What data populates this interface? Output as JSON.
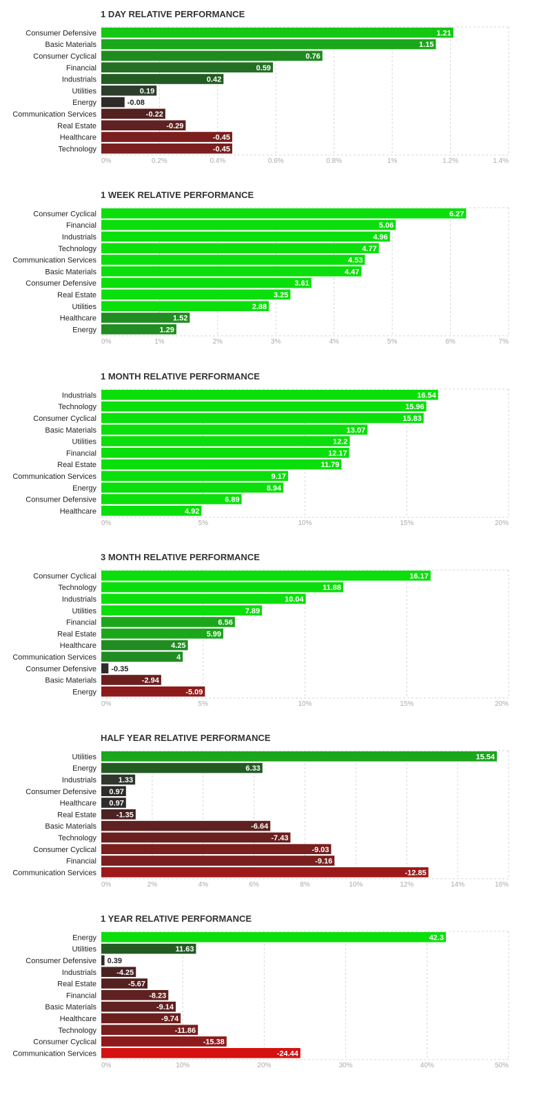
{
  "chart_data": [
    {
      "type": "bar",
      "orientation": "horizontal",
      "title": "1 DAY RELATIVE PERFORMANCE",
      "categories": [
        "Consumer Defensive",
        "Basic Materials",
        "Consumer Cyclical",
        "Financial",
        "Industrials",
        "Utilities",
        "Energy",
        "Communication Services",
        "Real Estate",
        "Healthcare",
        "Technology"
      ],
      "values": [
        1.21,
        1.15,
        0.76,
        0.59,
        0.42,
        0.19,
        -0.08,
        -0.22,
        -0.29,
        -0.45,
        -0.45
      ],
      "value_labels": [
        "1.21",
        "1.15",
        "0.76",
        "0.59",
        "0.42",
        "0.19",
        "-0.08",
        "-0.22",
        "-0.29",
        "-0.45",
        "-0.45"
      ],
      "xlim": [
        0,
        1.4
      ],
      "xticks": [
        0,
        0.2,
        0.4,
        0.6,
        0.8,
        1,
        1.2,
        1.4
      ],
      "xtick_labels": [
        "0%",
        "0.2%",
        "0.4%",
        "0.6%",
        "0.8%",
        "1%",
        "1.2%",
        "1.4%"
      ],
      "bar_colors": [
        "#13c713",
        "#1ba71b",
        "#1f8b1f",
        "#236f23",
        "#235c23",
        "#2d3e2d",
        "#302b2b",
        "#542020",
        "#5f2121",
        "#7a1e1e",
        "#7a1e1e"
      ],
      "grid": true
    },
    {
      "type": "bar",
      "orientation": "horizontal",
      "title": "1 WEEK RELATIVE PERFORMANCE",
      "categories": [
        "Consumer Cyclical",
        "Financial",
        "Industrials",
        "Technology",
        "Communication Services",
        "Basic Materials",
        "Consumer Defensive",
        "Real Estate",
        "Utilities",
        "Healthcare",
        "Energy"
      ],
      "values": [
        6.27,
        5.06,
        4.96,
        4.77,
        4.53,
        4.47,
        3.61,
        3.25,
        2.88,
        1.52,
        1.29
      ],
      "value_labels": [
        "6.27",
        "5.06",
        "4.96",
        "4.77",
        "4.53",
        "4.47",
        "3.61",
        "3.25",
        "2.88",
        "1.52",
        "1.29"
      ],
      "xlim": [
        0,
        7
      ],
      "xticks": [
        0,
        1,
        2,
        3,
        4,
        5,
        6,
        7
      ],
      "xtick_labels": [
        "0%",
        "1%",
        "2%",
        "3%",
        "4%",
        "5%",
        "6%",
        "7%"
      ],
      "bar_colors": [
        "#0bdf0b",
        "#0bdf0b",
        "#0bdf0b",
        "#0bdf0b",
        "#0bdf0b",
        "#0bdf0b",
        "#0bdf0b",
        "#0bdf0b",
        "#0bdf0b",
        "#218c21",
        "#218c21"
      ],
      "grid": true
    },
    {
      "type": "bar",
      "orientation": "horizontal",
      "title": "1 MONTH RELATIVE PERFORMANCE",
      "categories": [
        "Industrials",
        "Technology",
        "Consumer Cyclical",
        "Basic Materials",
        "Utilities",
        "Financial",
        "Real Estate",
        "Communication Services",
        "Energy",
        "Consumer Defensive",
        "Healthcare"
      ],
      "values": [
        16.54,
        15.96,
        15.83,
        13.07,
        12.2,
        12.17,
        11.79,
        9.17,
        8.94,
        6.89,
        4.92
      ],
      "value_labels": [
        "16.54",
        "15.96",
        "15.83",
        "13.07",
        "12.2",
        "12.17",
        "11.79",
        "9.17",
        "8.94",
        "6.89",
        "4.92"
      ],
      "xlim": [
        0,
        20
      ],
      "xticks": [
        0,
        5,
        10,
        15,
        20
      ],
      "xtick_labels": [
        "0%",
        "5%",
        "10%",
        "15%",
        "20%"
      ],
      "bar_colors": [
        "#0bdf0b",
        "#0bdf0b",
        "#0bdf0b",
        "#0bdf0b",
        "#0bdf0b",
        "#0bdf0b",
        "#0bdf0b",
        "#0bdf0b",
        "#0bdf0b",
        "#0bdf0b",
        "#0bdf0b"
      ],
      "grid": true
    },
    {
      "type": "bar",
      "orientation": "horizontal",
      "title": "3 MONTH RELATIVE PERFORMANCE",
      "categories": [
        "Consumer Cyclical",
        "Technology",
        "Industrials",
        "Utilities",
        "Financial",
        "Real Estate",
        "Healthcare",
        "Communication Services",
        "Consumer Defensive",
        "Basic Materials",
        "Energy"
      ],
      "values": [
        16.17,
        11.88,
        10.04,
        7.89,
        6.56,
        5.99,
        4.25,
        4,
        -0.35,
        -2.94,
        -5.09
      ],
      "value_labels": [
        "16.17",
        "11.88",
        "10.04",
        "7.89",
        "6.56",
        "5.99",
        "4.25",
        "4",
        "-0.35",
        "-2.94",
        "-5.09"
      ],
      "xlim": [
        0,
        20
      ],
      "xticks": [
        0,
        5,
        10,
        15,
        20
      ],
      "xtick_labels": [
        "0%",
        "5%",
        "10%",
        "15%",
        "20%"
      ],
      "bar_colors": [
        "#0bdf0b",
        "#0bdf0b",
        "#0bdf0b",
        "#0bdf0b",
        "#1ca61c",
        "#1ca61c",
        "#218c21",
        "#218c21",
        "#302b2b",
        "#6b1f1f",
        "#8e1b1b"
      ],
      "grid": true
    },
    {
      "type": "bar",
      "orientation": "horizontal",
      "title": "HALF YEAR RELATIVE PERFORMANCE",
      "categories": [
        "Utilities",
        "Energy",
        "Industrials",
        "Consumer Defensive",
        "Healthcare",
        "Real Estate",
        "Basic Materials",
        "Technology",
        "Consumer Cyclical",
        "Financial",
        "Communication Services"
      ],
      "values": [
        15.54,
        6.33,
        1.33,
        0.97,
        0.97,
        -1.35,
        -6.64,
        -7.43,
        -9.03,
        -9.16,
        -12.85
      ],
      "value_labels": [
        "15.54",
        "6.33",
        "1.33",
        "0.97",
        "0.97",
        "-1.35",
        "-6.64",
        "-7.43",
        "-9.03",
        "-9.16",
        "-12.85"
      ],
      "xlim": [
        0,
        16
      ],
      "xticks": [
        0,
        2,
        4,
        6,
        8,
        10,
        12,
        14,
        16
      ],
      "xtick_labels": [
        "0%",
        "2%",
        "4%",
        "6%",
        "8%",
        "10%",
        "12%",
        "14%",
        "16%"
      ],
      "bar_colors": [
        "#1ca61c",
        "#235c23",
        "#2e362e",
        "#302b2b",
        "#302b2b",
        "#4a2222",
        "#5f2121",
        "#6b1f1f",
        "#7a1e1e",
        "#7a1e1e",
        "#9e1a1a"
      ],
      "grid": true
    },
    {
      "type": "bar",
      "orientation": "horizontal",
      "title": "1 YEAR RELATIVE PERFORMANCE",
      "categories": [
        "Energy",
        "Utilities",
        "Consumer Defensive",
        "Industrials",
        "Real Estate",
        "Financial",
        "Basic Materials",
        "Healthcare",
        "Technology",
        "Consumer Cyclical",
        "Communication Services"
      ],
      "values": [
        42.3,
        11.63,
        0.39,
        -4.25,
        -5.67,
        -8.23,
        -9.14,
        -9.74,
        -11.86,
        -15.38,
        -24.44
      ],
      "value_labels": [
        "42.3",
        "11.63",
        "0.39",
        "-4.25",
        "-5.67",
        "-8.23",
        "-9.14",
        "-9.74",
        "-11.86",
        "-15.38",
        "-24.44"
      ],
      "xlim": [
        0,
        50
      ],
      "xticks": [
        0,
        10,
        20,
        30,
        40,
        50
      ],
      "xtick_labels": [
        "0%",
        "10%",
        "20%",
        "30%",
        "40%",
        "50%"
      ],
      "bar_colors": [
        "#0bdf0b",
        "#235c23",
        "#302b2b",
        "#4a2222",
        "#542020",
        "#5f2121",
        "#5f2121",
        "#6b1f1f",
        "#7a1e1e",
        "#8e1b1b",
        "#d51010"
      ],
      "grid": true
    }
  ]
}
